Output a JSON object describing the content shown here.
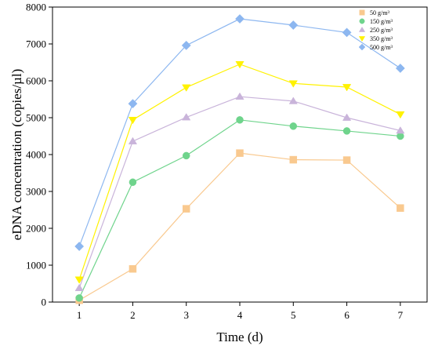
{
  "chart_data": {
    "type": "line",
    "title": "",
    "xlabel": "Time (d)",
    "ylabel": "eDNA concentration (copies/µl)",
    "x": [
      1,
      2,
      3,
      4,
      5,
      6,
      7
    ],
    "xlim": [
      0.5,
      7.5
    ],
    "ylim": [
      0,
      8000
    ],
    "xticks": [
      "1",
      "2",
      "3",
      "4",
      "5",
      "6",
      "7"
    ],
    "yticks": [
      "0",
      "1000",
      "2000",
      "3000",
      "4000",
      "5000",
      "6000",
      "7000",
      "8000"
    ],
    "grid": false,
    "legend_position": "top-right",
    "series": [
      {
        "name": "50  g/m³",
        "marker": "square",
        "color": "#F9C98F",
        "values": [
          50,
          900,
          2530,
          4040,
          3860,
          3850,
          2550
        ]
      },
      {
        "name": "150 g/m³",
        "marker": "circle",
        "color": "#6FD48C",
        "values": [
          110,
          3250,
          3970,
          4940,
          4770,
          4640,
          4500
        ]
      },
      {
        "name": "250 g/m³",
        "marker": "triangle",
        "color": "#C9B4DA",
        "values": [
          380,
          4360,
          5010,
          5570,
          5450,
          5000,
          4650
        ]
      },
      {
        "name": "350 g/m³",
        "marker": "triangle-down",
        "color": "#FFF200",
        "values": [
          610,
          4940,
          5820,
          6450,
          5930,
          5830,
          5090
        ]
      },
      {
        "name": "500 g/m³",
        "marker": "diamond",
        "color": "#8DB7F0",
        "values": [
          1510,
          5380,
          6960,
          7680,
          7510,
          7310,
          6340
        ]
      }
    ]
  }
}
